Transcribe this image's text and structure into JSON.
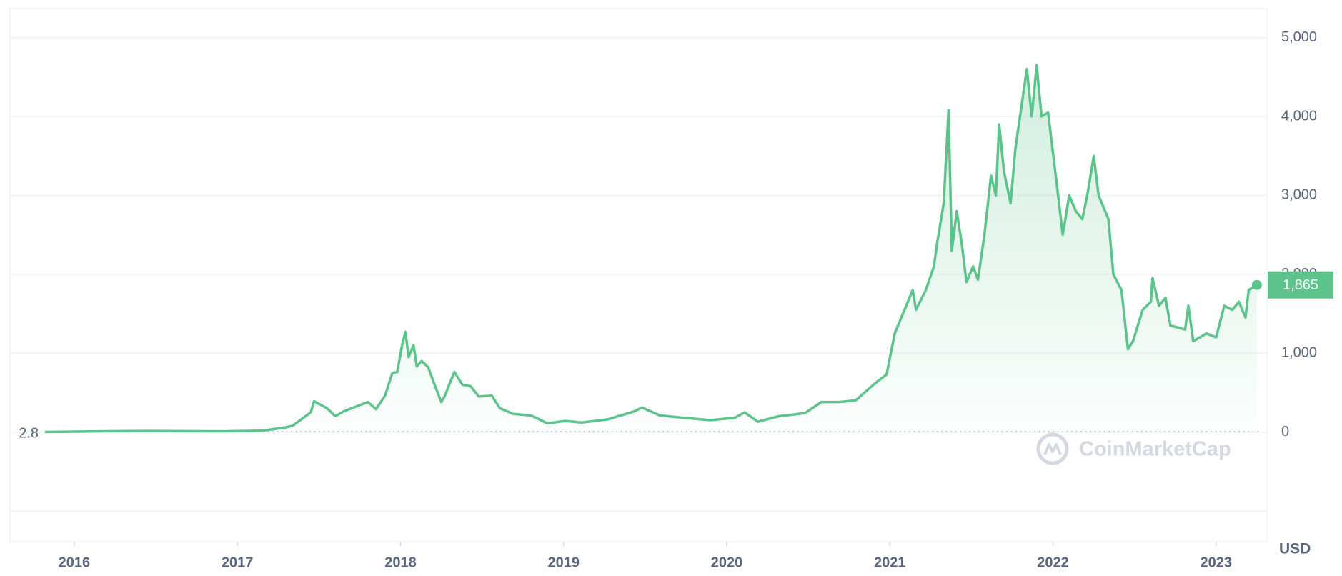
{
  "chart_data": {
    "type": "line",
    "color": "#5cc38b",
    "x": [
      2015.82,
      2016.2,
      2016.45,
      2016.9,
      2017.15,
      2017.3,
      2017.34,
      2017.45,
      2017.47,
      2017.55,
      2017.6,
      2017.65,
      2017.7,
      2017.8,
      2017.85,
      2017.905,
      2017.95,
      2017.98,
      2018.01,
      2018.03,
      2018.05,
      2018.08,
      2018.1,
      2018.13,
      2018.17,
      2018.2,
      2018.25,
      2018.27,
      2018.33,
      2018.38,
      2018.43,
      2018.48,
      2018.56,
      2018.61,
      2018.69,
      2018.8,
      2018.9,
      2019.01,
      2019.11,
      2019.27,
      2019.43,
      2019.48,
      2019.59,
      2019.74,
      2019.9,
      2020.05,
      2020.11,
      2020.19,
      2020.32,
      2020.48,
      2020.58,
      2020.69,
      2020.79,
      2020.9,
      2020.98,
      2021.03,
      2021.08,
      2021.14,
      2021.16,
      2021.22,
      2021.27,
      2021.29,
      2021.33,
      2021.36,
      2021.38,
      2021.41,
      2021.44,
      2021.47,
      2021.51,
      2021.54,
      2021.58,
      2021.62,
      2021.65,
      2021.67,
      2021.7,
      2021.74,
      2021.77,
      2021.84,
      2021.87,
      2021.9,
      2021.93,
      2021.97,
      2022.02,
      2022.06,
      2022.1,
      2022.14,
      2022.18,
      2022.21,
      2022.25,
      2022.28,
      2022.34,
      2022.37,
      2022.42,
      2022.46,
      2022.49,
      2022.55,
      2022.6,
      2022.61,
      2022.65,
      2022.69,
      2022.72,
      2022.81,
      2022.83,
      2022.86,
      2022.94,
      2023.0,
      2023.05,
      2023.1,
      2023.14,
      2023.18,
      2023.2,
      2023.25
    ],
    "values": [
      1,
      10,
      13,
      9,
      16,
      60,
      80,
      250,
      390,
      300,
      200,
      260,
      300,
      380,
      290,
      460,
      750,
      760,
      1100,
      1270,
      950,
      1100,
      830,
      900,
      820,
      650,
      380,
      450,
      760,
      600,
      580,
      450,
      460,
      300,
      230,
      210,
      110,
      140,
      120,
      160,
      260,
      310,
      210,
      180,
      150,
      180,
      250,
      130,
      200,
      240,
      380,
      380,
      400,
      600,
      730,
      1250,
      1500,
      1800,
      1550,
      1800,
      2100,
      2400,
      2900,
      4080,
      2300,
      2800,
      2400,
      1900,
      2100,
      1930,
      2500,
      3250,
      3000,
      3900,
      3300,
      2900,
      3600,
      4600,
      4000,
      4650,
      4000,
      4050,
      3200,
      2500,
      3000,
      2800,
      2700,
      3000,
      3500,
      3000,
      2700,
      2000,
      1800,
      1050,
      1150,
      1550,
      1650,
      1950,
      1600,
      1700,
      1350,
      1300,
      1600,
      1150,
      1250,
      1200,
      1600,
      1550,
      1650,
      1450,
      1800,
      1865
    ],
    "xlim": [
      2015.606,
      2023.312
    ],
    "xticks": [
      2016,
      2017,
      2018,
      2019,
      2020,
      2021,
      2022,
      2023
    ],
    "ylim": [
      -1390,
      5350
    ],
    "yticks": [
      0,
      {
        "value": 1000,
        "label": "1,000"
      },
      {
        "value": 2000,
        "label": "2,000"
      },
      {
        "value": 3000,
        "label": "3,000"
      },
      {
        "value": 4000,
        "label": "4,000"
      },
      {
        "value": 5000,
        "label": "5,000"
      }
    ],
    "grid": true,
    "start_value": 2.8,
    "last_price": {
      "value": 1865,
      "label": "1,865"
    },
    "currency": "USD",
    "watermark": "CoinMarketCap"
  }
}
